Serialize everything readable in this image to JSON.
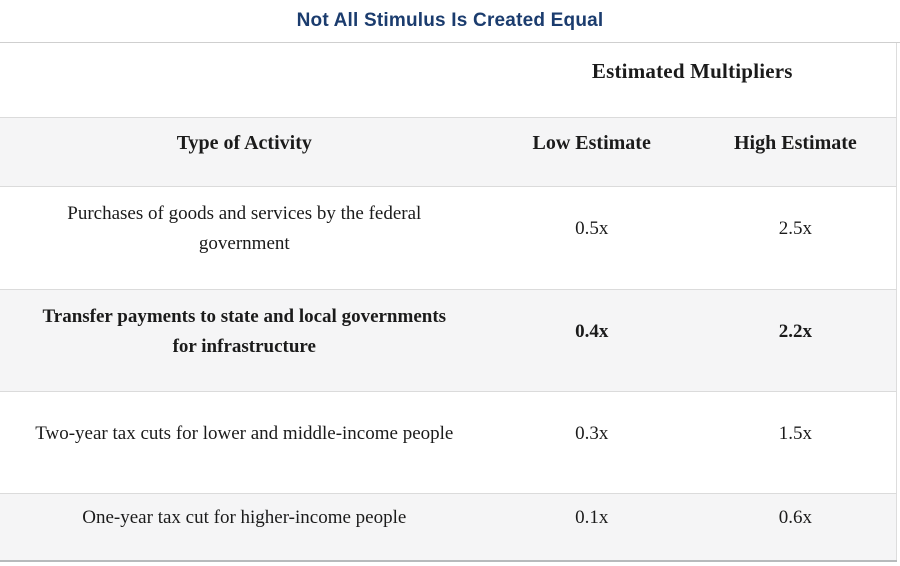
{
  "title": "Not All Stimulus Is Created Equal",
  "table": {
    "group_header": "Estimated Multipliers",
    "columns": {
      "activity": "Type of Activity",
      "low": "Low Estimate",
      "high": "High Estimate"
    },
    "rows": [
      {
        "activity": "Purchases of goods and services by the federal government",
        "low": "0.5x",
        "high": "2.5x"
      },
      {
        "activity": "Transfer payments to state and local governments for infrastructure",
        "low": "0.4x",
        "high": "2.2x"
      },
      {
        "activity": "Two-year tax cuts for lower and middle-income people",
        "low": "0.3x",
        "high": "1.5x"
      },
      {
        "activity": "One-year tax cut for higher-income people",
        "low": "0.1x",
        "high": "0.6x"
      }
    ]
  },
  "colors": {
    "title_text": "#1b3c6e",
    "stripe_background": "#f5f5f6",
    "row_divider": "#dbdbdb",
    "bottom_border": "#b7babc",
    "body_text": "#1b1b1b"
  },
  "chart_data": {
    "type": "table",
    "title": "Not All Stimulus Is Created Equal",
    "group_header": "Estimated Multipliers",
    "columns": [
      "Type of Activity",
      "Low Estimate",
      "High Estimate"
    ],
    "rows": [
      [
        "Purchases of goods and services by the federal government",
        "0.5x",
        "2.5x"
      ],
      [
        "Transfer payments to state and local governments for infrastructure",
        "0.4x",
        "2.2x"
      ],
      [
        "Two-year tax cuts for lower and middle-income people",
        "0.3x",
        "1.5x"
      ],
      [
        "One-year tax cut for higher-income people",
        "0.1x",
        "0.6x"
      ]
    ],
    "low_estimate_values": [
      0.5,
      0.4,
      0.3,
      0.1
    ],
    "high_estimate_values": [
      2.5,
      2.2,
      1.5,
      0.6
    ],
    "emphasized_row_index": 1,
    "layout": "zebra-striped table, all cells center-aligned, group header spans the two estimate columns"
  }
}
